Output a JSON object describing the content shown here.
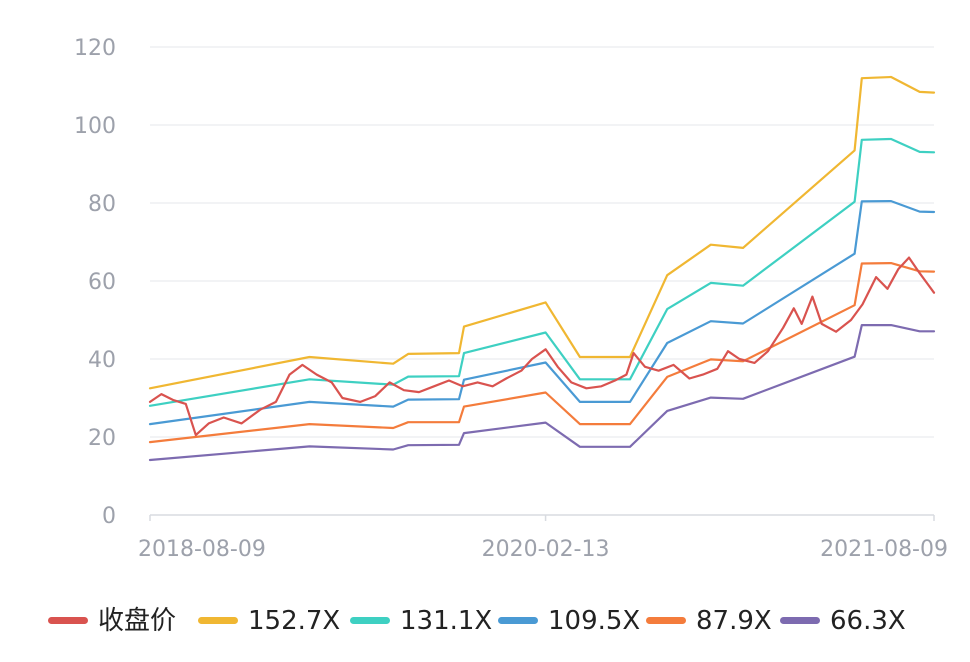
{
  "chart_data": {
    "type": "line",
    "x_ticks": [
      "2018-08-09",
      "2020-02-13",
      "2021-08-09"
    ],
    "ylim": [
      0,
      120
    ],
    "y_ticks": [
      0,
      20,
      40,
      60,
      80,
      100,
      120
    ],
    "grid": true,
    "legend_position": "bottom",
    "series": [
      {
        "name": "收盘价",
        "color": "#d9534f",
        "points": [
          [
            "2018-08-09",
            29
          ],
          [
            "2018-08-25",
            31
          ],
          [
            "2018-09-10",
            29.5
          ],
          [
            "2018-09-28",
            28.5
          ],
          [
            "2018-10-12",
            20.5
          ],
          [
            "2018-10-30",
            23.5
          ],
          [
            "2018-11-20",
            25
          ],
          [
            "2018-12-15",
            23.5
          ],
          [
            "2019-01-10",
            27
          ],
          [
            "2019-02-01",
            29
          ],
          [
            "2019-02-20",
            36
          ],
          [
            "2019-03-10",
            38.5
          ],
          [
            "2019-03-30",
            36
          ],
          [
            "2019-04-20",
            34
          ],
          [
            "2019-05-05",
            30
          ],
          [
            "2019-05-30",
            29
          ],
          [
            "2019-06-20",
            30.5
          ],
          [
            "2019-07-10",
            34
          ],
          [
            "2019-07-30",
            32
          ],
          [
            "2019-08-20",
            31.5
          ],
          [
            "2019-09-10",
            33
          ],
          [
            "2019-10-01",
            34.5
          ],
          [
            "2019-10-20",
            33
          ],
          [
            "2019-11-10",
            34
          ],
          [
            "2019-12-01",
            33
          ],
          [
            "2019-12-20",
            35
          ],
          [
            "2020-01-10",
            37
          ],
          [
            "2020-01-25",
            40
          ],
          [
            "2020-02-13",
            42.5
          ],
          [
            "2020-03-01",
            38
          ],
          [
            "2020-03-20",
            34
          ],
          [
            "2020-04-10",
            32.5
          ],
          [
            "2020-05-01",
            33
          ],
          [
            "2020-05-20",
            34.5
          ],
          [
            "2020-06-05",
            36
          ],
          [
            "2020-06-15",
            41.5
          ],
          [
            "2020-07-01",
            38
          ],
          [
            "2020-07-20",
            37
          ],
          [
            "2020-08-10",
            38.5
          ],
          [
            "2020-09-01",
            35
          ],
          [
            "2020-09-20",
            36
          ],
          [
            "2020-10-10",
            37.5
          ],
          [
            "2020-10-25",
            42
          ],
          [
            "2020-11-10",
            40
          ],
          [
            "2020-12-01",
            39
          ],
          [
            "2020-12-20",
            42
          ],
          [
            "2021-01-10",
            48
          ],
          [
            "2021-01-25",
            53
          ],
          [
            "2021-02-05",
            49
          ],
          [
            "2021-02-20",
            56
          ],
          [
            "2021-03-05",
            49
          ],
          [
            "2021-03-25",
            47
          ],
          [
            "2021-04-15",
            50
          ],
          [
            "2021-05-01",
            54
          ],
          [
            "2021-05-20",
            61
          ],
          [
            "2021-06-05",
            58
          ],
          [
            "2021-06-20",
            63
          ],
          [
            "2021-07-05",
            66
          ],
          [
            "2021-07-20",
            62
          ],
          [
            "2021-08-01",
            59
          ],
          [
            "2021-08-09",
            57
          ]
        ]
      },
      {
        "name": "152.7X",
        "color": "#f0b732",
        "points": [
          [
            "2018-08-09",
            32.5
          ],
          [
            "2019-03-20",
            40.5
          ],
          [
            "2019-07-15",
            38.8
          ],
          [
            "2019-08-05",
            41.3
          ],
          [
            "2019-10-15",
            41.5
          ],
          [
            "2019-10-22",
            48.3
          ],
          [
            "2020-02-13",
            54.5
          ],
          [
            "2020-04-01",
            40.5
          ],
          [
            "2020-06-10",
            40.5
          ],
          [
            "2020-08-01",
            61.5
          ],
          [
            "2020-10-01",
            69.3
          ],
          [
            "2020-11-15",
            68.5
          ],
          [
            "2021-04-20",
            93.5
          ],
          [
            "2021-04-30",
            112
          ],
          [
            "2021-06-10",
            112.3
          ],
          [
            "2021-07-20",
            108.5
          ],
          [
            "2021-08-09",
            108.3
          ]
        ]
      },
      {
        "name": "131.1X",
        "color": "#3ed0c2",
        "points": [
          [
            "2018-08-09",
            28
          ],
          [
            "2019-03-20",
            34.8
          ],
          [
            "2019-07-15",
            33.4
          ],
          [
            "2019-08-05",
            35.5
          ],
          [
            "2019-10-15",
            35.6
          ],
          [
            "2019-10-22",
            41.5
          ],
          [
            "2020-02-13",
            46.8
          ],
          [
            "2020-04-01",
            34.8
          ],
          [
            "2020-06-10",
            34.8
          ],
          [
            "2020-08-01",
            52.8
          ],
          [
            "2020-10-01",
            59.5
          ],
          [
            "2020-11-15",
            58.8
          ],
          [
            "2021-04-20",
            80.3
          ],
          [
            "2021-04-30",
            96.2
          ],
          [
            "2021-06-10",
            96.4
          ],
          [
            "2021-07-20",
            93.1
          ],
          [
            "2021-08-09",
            93
          ]
        ]
      },
      {
        "name": "109.5X",
        "color": "#4a9ad4",
        "points": [
          [
            "2018-08-09",
            23.3
          ],
          [
            "2019-03-20",
            29
          ],
          [
            "2019-07-15",
            27.8
          ],
          [
            "2019-08-05",
            29.6
          ],
          [
            "2019-10-15",
            29.7
          ],
          [
            "2019-10-22",
            34.7
          ],
          [
            "2020-02-13",
            39.1
          ],
          [
            "2020-04-01",
            29
          ],
          [
            "2020-06-10",
            29
          ],
          [
            "2020-08-01",
            44.1
          ],
          [
            "2020-10-01",
            49.7
          ],
          [
            "2020-11-15",
            49.1
          ],
          [
            "2021-04-20",
            67
          ],
          [
            "2021-04-30",
            80.4
          ],
          [
            "2021-06-10",
            80.5
          ],
          [
            "2021-07-20",
            77.8
          ],
          [
            "2021-08-09",
            77.7
          ]
        ]
      },
      {
        "name": "87.9X",
        "color": "#f47c3c",
        "points": [
          [
            "2018-08-09",
            18.7
          ],
          [
            "2019-03-20",
            23.3
          ],
          [
            "2019-07-15",
            22.3
          ],
          [
            "2019-08-05",
            23.8
          ],
          [
            "2019-10-15",
            23.8
          ],
          [
            "2019-10-22",
            27.8
          ],
          [
            "2020-02-13",
            31.4
          ],
          [
            "2020-04-01",
            23.3
          ],
          [
            "2020-06-10",
            23.3
          ],
          [
            "2020-08-01",
            35.4
          ],
          [
            "2020-10-01",
            39.9
          ],
          [
            "2020-11-15",
            39.4
          ],
          [
            "2021-04-20",
            53.8
          ],
          [
            "2021-04-30",
            64.5
          ],
          [
            "2021-06-10",
            64.6
          ],
          [
            "2021-07-20",
            62.5
          ],
          [
            "2021-08-09",
            62.4
          ]
        ]
      },
      {
        "name": "66.3X",
        "color": "#7d6bb0",
        "points": [
          [
            "2018-08-09",
            14.1
          ],
          [
            "2019-03-20",
            17.6
          ],
          [
            "2019-07-15",
            16.8
          ],
          [
            "2019-08-05",
            17.9
          ],
          [
            "2019-10-15",
            18
          ],
          [
            "2019-10-22",
            21
          ],
          [
            "2020-02-13",
            23.7
          ],
          [
            "2020-04-01",
            17.5
          ],
          [
            "2020-06-10",
            17.5
          ],
          [
            "2020-08-01",
            26.7
          ],
          [
            "2020-10-01",
            30.1
          ],
          [
            "2020-11-15",
            29.8
          ],
          [
            "2021-04-20",
            40.6
          ],
          [
            "2021-04-30",
            48.7
          ],
          [
            "2021-06-10",
            48.7
          ],
          [
            "2021-07-20",
            47.1
          ],
          [
            "2021-08-09",
            47.1
          ]
        ]
      }
    ]
  }
}
